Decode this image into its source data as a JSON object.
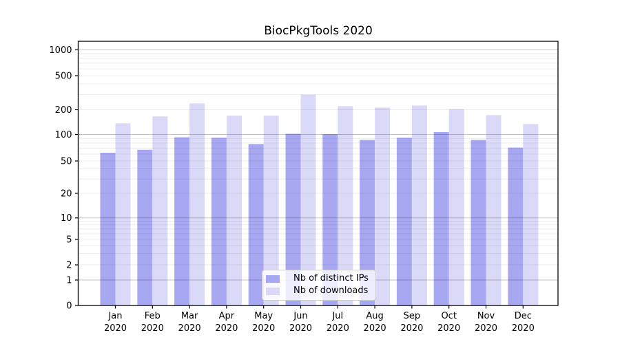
{
  "chart_data": {
    "type": "bar",
    "title": "BiocPkgTools 2020",
    "categories": [
      "Jan",
      "Feb",
      "Mar",
      "Apr",
      "May",
      "Jun",
      "Jul",
      "Aug",
      "Sep",
      "Oct",
      "Nov",
      "Dec"
    ],
    "x_tick_year": "2020",
    "series": [
      {
        "name": "Nb of distinct IPs",
        "color": "#a7a7f2",
        "values": [
          62,
          67,
          93,
          92,
          78,
          102,
          101,
          87,
          92,
          107,
          87,
          71
        ]
      },
      {
        "name": "Nb of downloads",
        "color": "#dadaf8",
        "values": [
          137,
          166,
          237,
          170,
          170,
          300,
          220,
          212,
          224,
          203,
          172,
          134
        ]
      }
    ],
    "xlabel": "",
    "ylabel": "",
    "yscale": "symlog",
    "ylim": [
      0,
      1300
    ],
    "y_ticks": [
      0,
      1,
      2,
      5,
      10,
      20,
      50,
      100,
      200,
      500,
      1000
    ],
    "y_major_gridlines": [
      1,
      10,
      100,
      1000
    ],
    "grid": true,
    "legend_position": "inside bottom-center",
    "scale_anchors": [
      [
        0,
        0.0
      ],
      [
        1,
        0.0964
      ],
      [
        2,
        0.1536
      ],
      [
        5,
        0.25
      ],
      [
        10,
        0.3315
      ],
      [
        20,
        0.4245
      ],
      [
        50,
        0.5469
      ],
      [
        100,
        0.6471
      ],
      [
        200,
        0.7409
      ],
      [
        500,
        0.8698
      ],
      [
        1000,
        0.968
      ]
    ]
  },
  "colors": {
    "background": "#ffffff",
    "axis": "#000000",
    "text": "#000000",
    "major_grid": "rgba(0,0,0,0.24)",
    "minor_grid": "rgba(0,0,0,0.075)",
    "legend_border": "#cccccc",
    "legend_background": "rgba(255,255,255,0.8)"
  }
}
